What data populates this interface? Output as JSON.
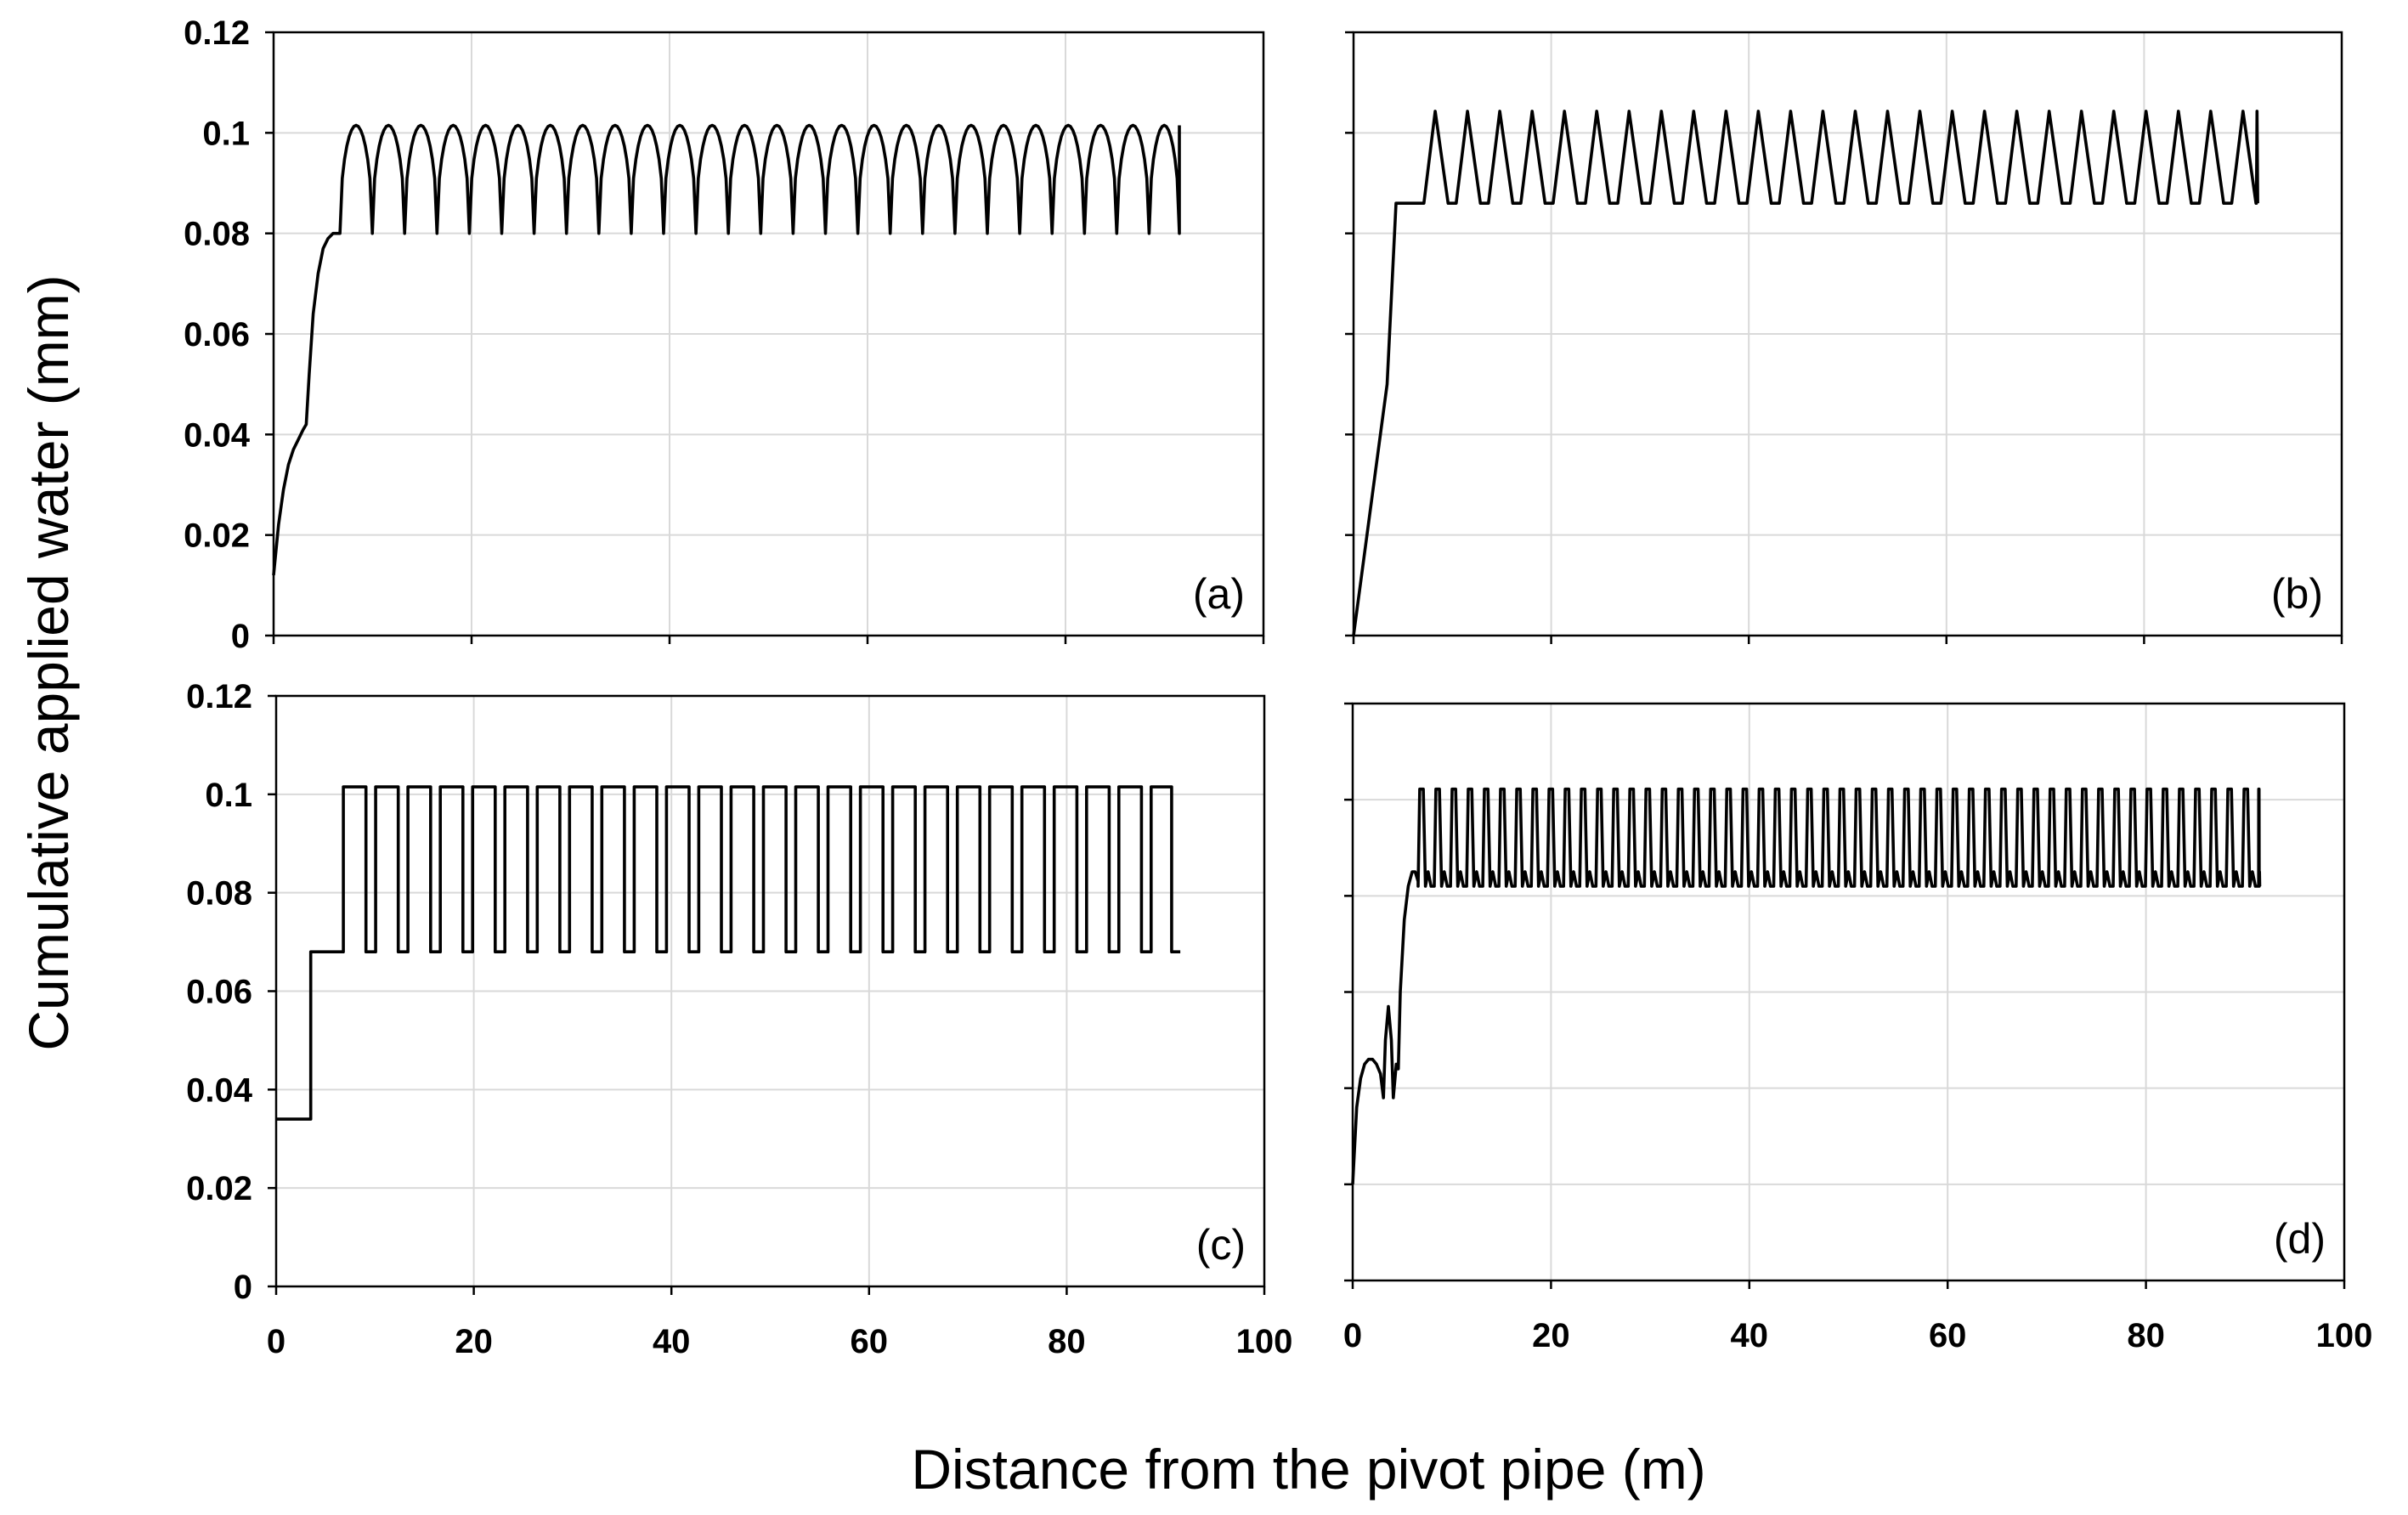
{
  "figure": {
    "ylabel": "Cumulative applied water (mm)",
    "xlabel": "Distance from the pivot pipe (m)"
  },
  "chart_data": [
    {
      "type": "line",
      "panel_label": "(a)",
      "xlim": [
        0,
        100
      ],
      "ylim": [
        0,
        0.12
      ],
      "xticks": [
        "0",
        "20",
        "40",
        "60",
        "80",
        "100"
      ],
      "yticks": [
        "0",
        "0.02",
        "0.04",
        "0.06",
        "0.08",
        "0.1",
        "0.12"
      ],
      "grid": true,
      "profile": "arched",
      "x": [
        0,
        0.5,
        1,
        1.5,
        2,
        2.5,
        3,
        3.3,
        3.6,
        4,
        4.5,
        5,
        5.5,
        6,
        6.5,
        6.7
      ],
      "y": [
        0.012,
        0.022,
        0.029,
        0.034,
        0.037,
        0.039,
        0.041,
        0.042,
        0.052,
        0.064,
        0.072,
        0.077,
        0.079,
        0.08,
        0.08,
        0.08
      ],
      "period_start": 6.7,
      "period_end": 91.5,
      "period": 3.27,
      "y_low": 0.08,
      "y_high": 0.1015
    },
    {
      "type": "line",
      "panel_label": "(b)",
      "xlim": [
        0,
        100
      ],
      "ylim": [
        0,
        0.12
      ],
      "xticks": [
        "0",
        "20",
        "40",
        "60",
        "80",
        "100"
      ],
      "yticks": [
        "0",
        "0.02",
        "0.04",
        "0.06",
        "0.08",
        "0.1",
        "0.12"
      ],
      "grid": true,
      "profile": "triangular",
      "x": [
        0,
        3.4,
        4.3,
        6.3
      ],
      "y": [
        0,
        0.05,
        0.086,
        0.086
      ],
      "period_start": 6.3,
      "period_end": 91.5,
      "period": 3.27,
      "y_low": 0.086,
      "y_high": 0.1043
    },
    {
      "type": "line",
      "panel_label": "(c)",
      "xlim": [
        0,
        100
      ],
      "ylim": [
        0,
        0.12
      ],
      "xticks": [
        "0",
        "20",
        "40",
        "60",
        "80",
        "100"
      ],
      "yticks": [
        "0",
        "0.02",
        "0.04",
        "0.06",
        "0.08",
        "0.1",
        "0.12"
      ],
      "grid": true,
      "profile": "rectangular",
      "x": [
        0,
        3.5,
        3.5,
        6.8
      ],
      "y": [
        0.034,
        0.034,
        0.068,
        0.068
      ],
      "period_start": 6.8,
      "period_end": 91.5,
      "period": 3.27,
      "y_low": 0.068,
      "y_high": 0.1015
    },
    {
      "type": "line",
      "panel_label": "(d)",
      "xlim": [
        0,
        100
      ],
      "ylim": [
        0,
        0.12
      ],
      "xticks": [
        "0",
        "20",
        "40",
        "60",
        "80",
        "100"
      ],
      "yticks": [
        "0",
        "0.02",
        "0.04",
        "0.06",
        "0.08",
        "0.1",
        "0.12"
      ],
      "grid": true,
      "profile": "double-peak",
      "x": [
        0,
        0.4,
        0.8,
        1.2,
        1.6,
        2,
        2.4,
        2.8,
        3.1,
        3.3,
        3.6,
        3.9,
        4.1,
        4.4,
        4.6,
        4.8,
        5.2,
        5.6,
        6,
        6.3,
        6.6
      ],
      "y": [
        0.02,
        0.036,
        0.042,
        0.045,
        0.046,
        0.046,
        0.045,
        0.043,
        0.038,
        0.05,
        0.057,
        0.05,
        0.038,
        0.045,
        0.044,
        0.06,
        0.075,
        0.082,
        0.085,
        0.085,
        0.083
      ],
      "period_start": 6.6,
      "period_end": 91.5,
      "period": 1.63,
      "y_low": 0.082,
      "y_high": 0.1022,
      "y_mid": 0.085
    }
  ]
}
